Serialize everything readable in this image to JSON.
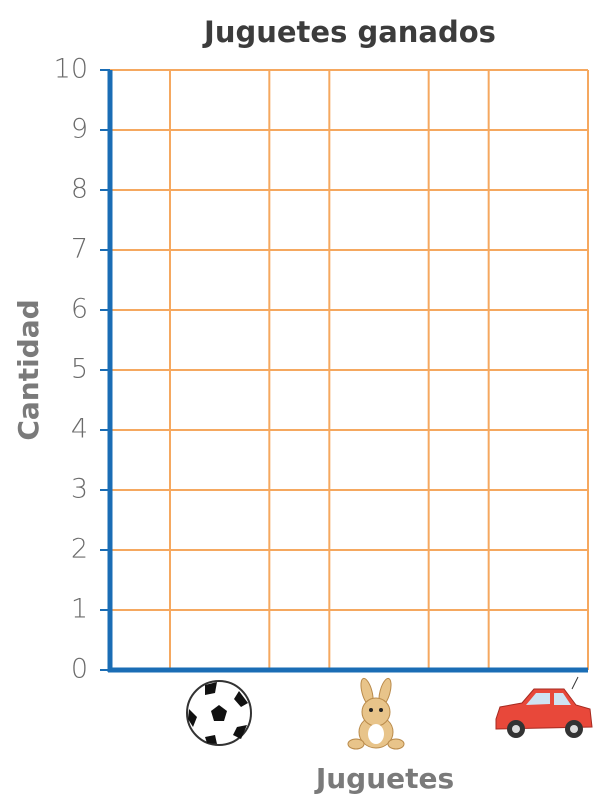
{
  "chart_data": {
    "type": "bar",
    "title": "Juguetes ganados",
    "x_label": "Juguetes",
    "y_label": "Cantidad",
    "categories": [
      null,
      null,
      null
    ],
    "ylim": [
      0,
      10
    ],
    "yticks": [
      0,
      1,
      2,
      3,
      4,
      5,
      6,
      7,
      8,
      9,
      10
    ],
    "grid": true,
    "grid_color": "#f5a860",
    "axis_color": "#1a6db5"
  }
}
